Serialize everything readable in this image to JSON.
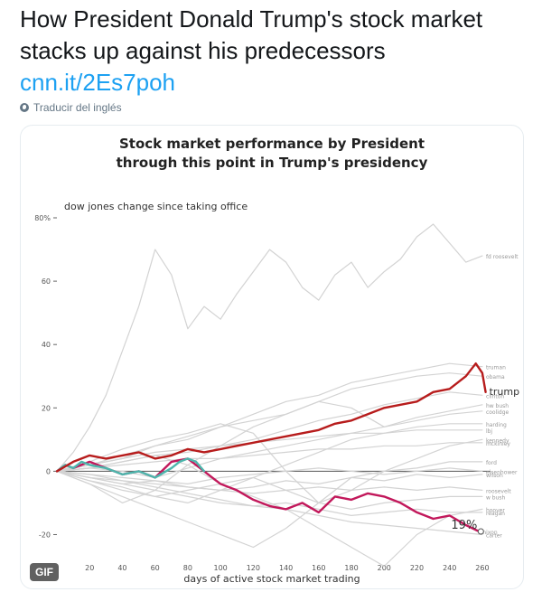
{
  "tweet": {
    "text": "How President Donald Trump's stock market stacks up against his predecessors",
    "link": "cnn.it/2Es7poh",
    "translate_label": "Traducir del inglés",
    "globe_icon": "globe-icon"
  },
  "media": {
    "gif_badge": "GIF"
  },
  "chart_data": {
    "type": "line",
    "title": "Stock market performance by President through this point in Trump's presidency",
    "ylabel": "dow jones change since taking office",
    "xlabel": "days of active stock market trading",
    "xlim": [
      0,
      265
    ],
    "ylim": [
      -25,
      82
    ],
    "x_ticks": [
      20,
      40,
      60,
      80,
      100,
      120,
      140,
      160,
      180,
      200,
      220,
      240,
      260
    ],
    "y_ticks": [
      {
        "value": 80,
        "label": "80%"
      },
      {
        "value": 60,
        "label": "60"
      },
      {
        "value": 40,
        "label": "40"
      },
      {
        "value": 20,
        "label": "20"
      },
      {
        "value": 0,
        "label": "0"
      },
      {
        "value": -20,
        "label": "-20"
      }
    ],
    "annotation": {
      "text": "19%",
      "x": 258,
      "y": -17
    },
    "series": [
      {
        "name": "fd roosevelt",
        "color": "#d3d3d3",
        "x": [
          0,
          10,
          20,
          30,
          40,
          50,
          60,
          70,
          80,
          90,
          100,
          110,
          120,
          130,
          140,
          150,
          160,
          170,
          180,
          190,
          200,
          210,
          220,
          230,
          240,
          250,
          260
        ],
        "y": [
          0,
          6,
          14,
          24,
          38,
          52,
          70,
          62,
          45,
          52,
          48,
          56,
          63,
          70,
          66,
          58,
          54,
          62,
          66,
          58,
          63,
          67,
          74,
          78,
          72,
          66,
          68
        ]
      },
      {
        "name": "truman",
        "color": "#d3d3d3",
        "x": [
          0,
          20,
          40,
          60,
          80,
          100,
          120,
          140,
          160,
          180,
          200,
          220,
          240,
          260
        ],
        "y": [
          0,
          2,
          5,
          8,
          10,
          14,
          18,
          22,
          24,
          28,
          30,
          32,
          34,
          33
        ]
      },
      {
        "name": "clinton",
        "color": "#d3d3d3",
        "x": [
          0,
          20,
          40,
          60,
          80,
          100,
          120,
          140,
          160,
          180,
          200,
          220,
          240,
          260
        ],
        "y": [
          0,
          1,
          3,
          5,
          6,
          8,
          10,
          13,
          16,
          18,
          21,
          23,
          25,
          24
        ]
      },
      {
        "name": "obama",
        "color": "#d3d3d3",
        "x": [
          0,
          20,
          40,
          60,
          80,
          100,
          120,
          140,
          160,
          180,
          200,
          220,
          240,
          260
        ],
        "y": [
          0,
          -4,
          -10,
          -6,
          2,
          8,
          14,
          18,
          22,
          26,
          28,
          30,
          31,
          30
        ]
      },
      {
        "name": "hw bush",
        "color": "#d3d3d3",
        "x": [
          0,
          20,
          40,
          60,
          80,
          100,
          120,
          140,
          160,
          180,
          200,
          220,
          240,
          260
        ],
        "y": [
          0,
          2,
          4,
          8,
          11,
          14,
          16,
          18,
          22,
          20,
          14,
          17,
          19,
          21
        ]
      },
      {
        "name": "coolidge",
        "color": "#d3d3d3",
        "x": [
          0,
          20,
          40,
          60,
          80,
          100,
          120,
          140,
          160,
          180,
          200,
          220,
          240,
          260
        ],
        "y": [
          0,
          1,
          0,
          -2,
          1,
          4,
          6,
          8,
          10,
          12,
          14,
          16,
          18,
          19
        ]
      },
      {
        "name": "harding",
        "color": "#d3d3d3",
        "x": [
          0,
          20,
          40,
          60,
          80,
          100,
          120,
          140,
          160,
          180,
          200,
          220,
          240,
          260
        ],
        "y": [
          0,
          -3,
          -6,
          -8,
          -10,
          -6,
          -2,
          2,
          6,
          10,
          12,
          14,
          15,
          15
        ]
      },
      {
        "name": "lbj",
        "color": "#d3d3d3",
        "x": [
          0,
          20,
          40,
          60,
          80,
          100,
          120,
          140,
          160,
          180,
          200,
          220,
          240,
          260
        ],
        "y": [
          0,
          2,
          4,
          6,
          7,
          8,
          9,
          10,
          11,
          12,
          12,
          13,
          13,
          13
        ]
      },
      {
        "name": "kennedy",
        "color": "#d3d3d3",
        "x": [
          0,
          20,
          40,
          60,
          80,
          100,
          120,
          140,
          160,
          180,
          200,
          220,
          240,
          260
        ],
        "y": [
          0,
          3,
          7,
          10,
          12,
          15,
          12,
          0,
          -10,
          -6,
          0,
          4,
          8,
          10
        ]
      },
      {
        "name": "mckinley",
        "color": "#d3d3d3",
        "x": [
          0,
          20,
          40,
          60,
          80,
          100,
          120,
          140,
          160,
          180,
          200,
          220,
          240,
          260
        ],
        "y": [
          0,
          1,
          2,
          3,
          4,
          4,
          5,
          6,
          7,
          7,
          8,
          8,
          9,
          9
        ]
      },
      {
        "name": "ford",
        "color": "#d3d3d3",
        "x": [
          0,
          20,
          40,
          60,
          80,
          100,
          120,
          140,
          160,
          180,
          200,
          220,
          240,
          260
        ],
        "y": [
          0,
          -4,
          -8,
          -12,
          -16,
          -20,
          -24,
          -18,
          -10,
          -2,
          0,
          1,
          3,
          3
        ]
      },
      {
        "name": "eisenhower",
        "color": "#d3d3d3",
        "x": [
          0,
          20,
          40,
          60,
          80,
          100,
          120,
          140,
          160,
          180,
          200,
          220,
          240,
          260
        ],
        "y": [
          0,
          -1,
          -2,
          -3,
          -4,
          -2,
          -1,
          0,
          1,
          0,
          -1,
          0,
          1,
          0
        ]
      },
      {
        "name": "wilson",
        "color": "#d3d3d3",
        "x": [
          0,
          20,
          40,
          60,
          80,
          100,
          120,
          140,
          160,
          180,
          200,
          220,
          240,
          260
        ],
        "y": [
          0,
          -2,
          -4,
          -3,
          -5,
          -6,
          -5,
          -3,
          -4,
          -2,
          -3,
          -1,
          -2,
          -1
        ]
      },
      {
        "name": "roosevelt",
        "color": "#d3d3d3",
        "x": [
          0,
          20,
          40,
          60,
          80,
          100,
          120,
          140,
          160,
          180,
          200,
          220,
          240,
          260
        ],
        "y": [
          0,
          -2,
          -3,
          -4,
          -5,
          -6,
          -7,
          -6,
          -5,
          -6,
          -5,
          -6,
          -5,
          -6
        ]
      },
      {
        "name": "w bush",
        "color": "#d3d3d3",
        "x": [
          0,
          20,
          40,
          60,
          80,
          100,
          120,
          140,
          160,
          180,
          200,
          220,
          240,
          260
        ],
        "y": [
          0,
          -3,
          -5,
          -8,
          -6,
          -4,
          -2,
          -6,
          -10,
          -12,
          -10,
          -9,
          -8,
          -8
        ]
      },
      {
        "name": "hoover",
        "color": "#d3d3d3",
        "x": [
          0,
          20,
          40,
          60,
          80,
          100,
          120,
          140,
          160,
          180,
          200,
          220,
          240,
          260
        ],
        "y": [
          0,
          1,
          3,
          5,
          2,
          -4,
          -8,
          -12,
          -18,
          -24,
          -30,
          -20,
          -14,
          -12
        ]
      },
      {
        "name": "reagan",
        "color": "#d3d3d3",
        "x": [
          0,
          20,
          40,
          60,
          80,
          100,
          120,
          140,
          160,
          180,
          200,
          220,
          240,
          260
        ],
        "y": [
          0,
          -1,
          -3,
          -5,
          -7,
          -9,
          -11,
          -10,
          -12,
          -14,
          -13,
          -12,
          -13,
          -13
        ]
      },
      {
        "name": "carter",
        "color": "#d3d3d3",
        "x": [
          0,
          20,
          40,
          60,
          80,
          100,
          120,
          140,
          160,
          180,
          200,
          220,
          240,
          260
        ],
        "y": [
          0,
          -2,
          -4,
          -6,
          -8,
          -10,
          -11,
          -12,
          -14,
          -16,
          -17,
          -18,
          -19,
          -20
        ]
      },
      {
        "name": "nixon",
        "color": "#c2185b",
        "x": [
          0,
          5,
          10,
          20,
          30,
          40,
          50,
          60,
          70,
          80,
          90,
          100,
          110,
          120,
          130,
          140,
          150,
          160,
          170,
          180,
          190,
          200,
          210,
          220,
          230,
          240,
          250,
          258
        ],
        "y": [
          0,
          2,
          1,
          3,
          1,
          -1,
          0,
          -2,
          3,
          4,
          0,
          -4,
          -6,
          -9,
          -11,
          -12,
          -10,
          -13,
          -8,
          -9,
          -7,
          -8,
          -10,
          -13,
          -15,
          -14,
          -17,
          -19
        ]
      },
      {
        "name": "nixon-early",
        "color": "#4db6ac",
        "x": [
          0,
          5,
          10,
          15,
          20,
          30,
          40,
          50,
          60,
          70,
          75,
          80,
          85,
          90
        ],
        "y": [
          0,
          2,
          1,
          3,
          2,
          1,
          -1,
          0,
          -2,
          1,
          3,
          4,
          3,
          0
        ]
      },
      {
        "name": "trump",
        "color": "#b71c1c",
        "x": [
          0,
          10,
          20,
          30,
          40,
          50,
          60,
          70,
          80,
          90,
          100,
          110,
          120,
          130,
          140,
          150,
          160,
          170,
          180,
          190,
          200,
          210,
          220,
          230,
          240,
          250,
          256,
          260,
          262
        ],
        "y": [
          0,
          3,
          5,
          4,
          5,
          6,
          4,
          5,
          7,
          6,
          7,
          8,
          9,
          10,
          11,
          12,
          13,
          15,
          16,
          18,
          20,
          21,
          22,
          25,
          26,
          30,
          34,
          31,
          25
        ]
      }
    ]
  }
}
